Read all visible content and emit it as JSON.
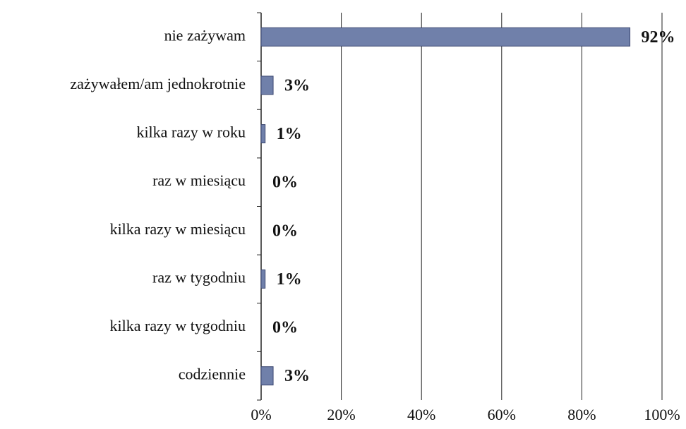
{
  "chart_data": {
    "type": "bar",
    "orientation": "horizontal",
    "categories": [
      "nie zażywam",
      "zażywałem/am  jednokrotnie",
      "kilka razy w roku",
      "raz w miesiącu",
      "kilka razy w miesiącu",
      "raz w tygodniu",
      "kilka razy w tygodniu",
      "codziennie"
    ],
    "values": [
      92,
      3,
      1,
      0,
      0,
      1,
      0,
      3
    ],
    "value_labels": [
      "92%",
      "3%",
      "1%",
      "0%",
      "0%",
      "1%",
      "0%",
      "3%"
    ],
    "color": "#7080aa",
    "xlim": [
      0,
      100
    ],
    "xticks": [
      {
        "value": 0,
        "label": "0%"
      },
      {
        "value": 20,
        "label": "20%"
      },
      {
        "value": 40,
        "label": "40%"
      },
      {
        "value": 60,
        "label": "60%"
      },
      {
        "value": 80,
        "label": "80%"
      },
      {
        "value": 100,
        "label": "100%"
      }
    ],
    "grid": true
  }
}
